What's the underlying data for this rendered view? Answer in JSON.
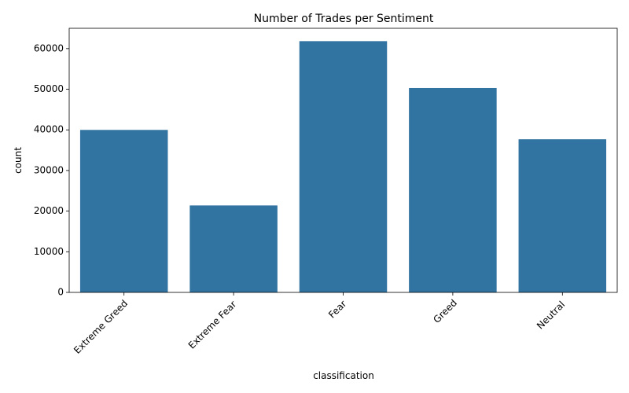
{
  "chart_data": {
    "type": "bar",
    "title": "Number of Trades per Sentiment",
    "xlabel": "classification",
    "ylabel": "count",
    "categories": [
      "Extreme Greed",
      "Extreme Fear",
      "Fear",
      "Greed",
      "Neutral"
    ],
    "values": [
      39992,
      21400,
      61837,
      50303,
      37686
    ],
    "ylim": [
      0,
      65000
    ],
    "yticks": [
      0,
      10000,
      20000,
      30000,
      40000,
      50000,
      60000
    ],
    "ytick_labels": [
      "0",
      "10000",
      "20000",
      "30000",
      "40000",
      "50000",
      "60000"
    ],
    "bar_color": "#3274a1",
    "grid": false,
    "xtick_rotation": 45
  }
}
